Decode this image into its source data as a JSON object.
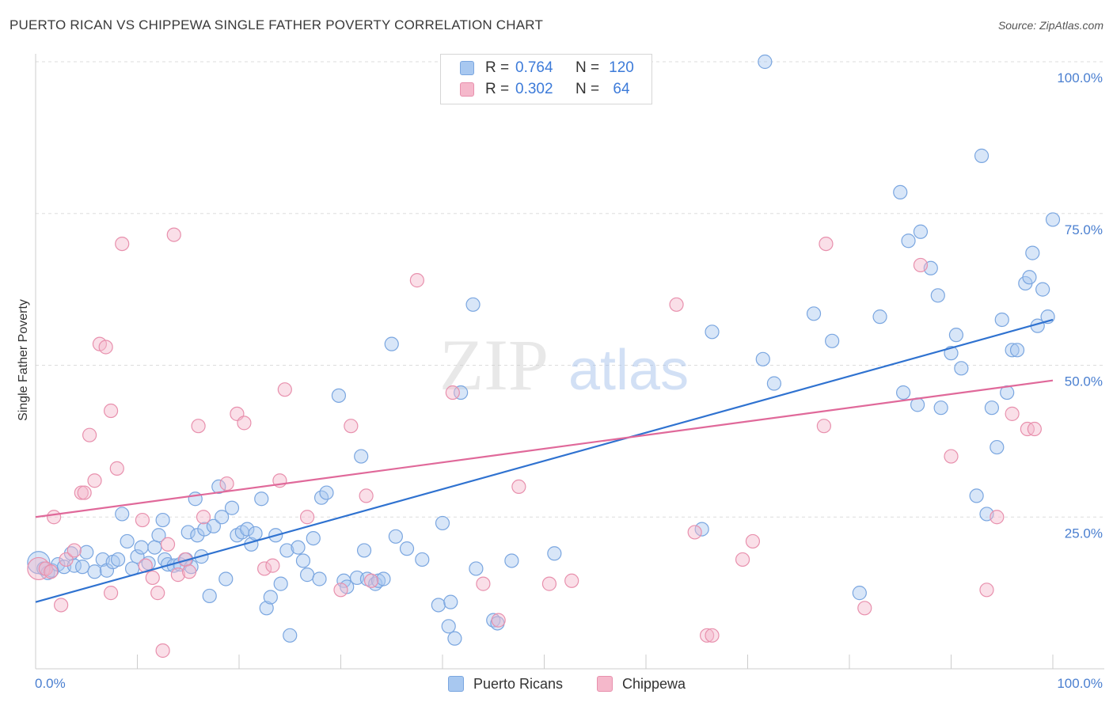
{
  "title": "PUERTO RICAN VS CHIPPEWA SINGLE FATHER POVERTY CORRELATION CHART",
  "source": "Source: ZipAtlas.com",
  "watermark": {
    "zip": "ZIP",
    "atlas": "atlas"
  },
  "legend": {
    "rows": [
      {
        "r_label": "R =",
        "r_value": "0.764",
        "n_label": "N =",
        "n_value": "120",
        "color": "#a8c8f0",
        "border": "#7aa6e0"
      },
      {
        "r_label": "R =",
        "r_value": "0.302",
        "n_label": "N =",
        "n_value": "64",
        "color": "#f5b8cb",
        "border": "#e890ad"
      }
    ]
  },
  "bottom_legend": [
    {
      "label": "Puerto Ricans",
      "color": "#a8c8f0",
      "border": "#7aa6e0"
    },
    {
      "label": "Chippewa",
      "color": "#f5b8cb",
      "border": "#e890ad"
    }
  ],
  "chart_data": {
    "type": "scatter",
    "title": "PUERTO RICAN VS CHIPPEWA SINGLE FATHER POVERTY CORRELATION CHART",
    "xlabel": "",
    "ylabel": "Single Father Poverty",
    "xlim": [
      0,
      100
    ],
    "ylim": [
      0,
      100
    ],
    "x_ticks": [
      "0.0%",
      "100.0%"
    ],
    "y_ticks": [
      {
        "value": 25,
        "label": "25.0%"
      },
      {
        "value": 50,
        "label": "50.0%"
      },
      {
        "value": 75,
        "label": "75.0%"
      },
      {
        "value": 100,
        "label": "100.0%"
      }
    ],
    "grid": "dashed horizontal",
    "series": [
      {
        "name": "Puerto Ricans",
        "color": "#7aa6e0",
        "fill": "#a8c8f0",
        "trend": {
          "x0": 0,
          "y0": 11,
          "x1": 100,
          "y1": 57.5,
          "color": "#2f72d0"
        },
        "points": [
          [
            0.3,
            17.5
          ],
          [
            0.8,
            16.5
          ],
          [
            1.2,
            15.8
          ],
          [
            1.6,
            16.2
          ],
          [
            2.2,
            17.2
          ],
          [
            2.8,
            16.8
          ],
          [
            3.5,
            19.0
          ],
          [
            3.8,
            17.0
          ],
          [
            4.6,
            16.8
          ],
          [
            5.0,
            19.2
          ],
          [
            5.8,
            16.0
          ],
          [
            6.6,
            18.0
          ],
          [
            7.0,
            16.2
          ],
          [
            7.6,
            17.6
          ],
          [
            8.1,
            18.0
          ],
          [
            8.5,
            25.5
          ],
          [
            9.0,
            21.0
          ],
          [
            9.5,
            16.5
          ],
          [
            10.0,
            18.5
          ],
          [
            10.4,
            20.0
          ],
          [
            11.1,
            17.4
          ],
          [
            11.7,
            20.0
          ],
          [
            12.1,
            22.0
          ],
          [
            12.5,
            24.5
          ],
          [
            12.7,
            18.0
          ],
          [
            13.0,
            17.2
          ],
          [
            13.6,
            17.0
          ],
          [
            14.2,
            17.2
          ],
          [
            14.8,
            18.0
          ],
          [
            15.0,
            22.5
          ],
          [
            15.3,
            16.8
          ],
          [
            15.7,
            28.0
          ],
          [
            15.9,
            22.0
          ],
          [
            16.3,
            18.5
          ],
          [
            16.6,
            23.0
          ],
          [
            17.1,
            12.0
          ],
          [
            17.5,
            23.5
          ],
          [
            18.0,
            30.0
          ],
          [
            18.3,
            25.0
          ],
          [
            18.7,
            14.8
          ],
          [
            19.3,
            26.5
          ],
          [
            19.8,
            22.0
          ],
          [
            20.3,
            22.5
          ],
          [
            20.8,
            23.0
          ],
          [
            21.2,
            20.5
          ],
          [
            21.6,
            22.3
          ],
          [
            22.2,
            28.0
          ],
          [
            22.7,
            10.0
          ],
          [
            23.1,
            11.8
          ],
          [
            23.6,
            22.0
          ],
          [
            24.1,
            14.0
          ],
          [
            24.7,
            19.5
          ],
          [
            25.0,
            5.5
          ],
          [
            25.8,
            20.0
          ],
          [
            26.3,
            17.8
          ],
          [
            26.7,
            15.5
          ],
          [
            27.3,
            21.5
          ],
          [
            27.9,
            14.8
          ],
          [
            28.1,
            28.2
          ],
          [
            28.6,
            29.0
          ],
          [
            29.8,
            45.0
          ],
          [
            30.3,
            14.5
          ],
          [
            30.6,
            13.5
          ],
          [
            31.6,
            15.0
          ],
          [
            32.0,
            35.0
          ],
          [
            32.3,
            19.5
          ],
          [
            32.6,
            14.8
          ],
          [
            33.4,
            14.0
          ],
          [
            33.7,
            14.5
          ],
          [
            34.2,
            14.8
          ],
          [
            35.0,
            53.5
          ],
          [
            35.4,
            21.8
          ],
          [
            36.5,
            19.8
          ],
          [
            38.0,
            18.0
          ],
          [
            39.6,
            10.5
          ],
          [
            40.0,
            24.0
          ],
          [
            40.6,
            7.0
          ],
          [
            40.8,
            11.0
          ],
          [
            41.2,
            5.0
          ],
          [
            41.8,
            45.5
          ],
          [
            43.0,
            60.0
          ],
          [
            43.3,
            16.5
          ],
          [
            45.0,
            8.0
          ],
          [
            45.4,
            7.5
          ],
          [
            46.8,
            17.8
          ],
          [
            51.0,
            19.0
          ],
          [
            65.5,
            23.0
          ],
          [
            66.5,
            55.5
          ],
          [
            71.5,
            51.0
          ],
          [
            72.6,
            47.0
          ],
          [
            76.5,
            58.5
          ],
          [
            78.3,
            54.0
          ],
          [
            81.0,
            12.5
          ],
          [
            83.0,
            58.0
          ],
          [
            85.0,
            78.5
          ],
          [
            85.3,
            45.5
          ],
          [
            85.8,
            70.5
          ],
          [
            86.7,
            43.5
          ],
          [
            87.0,
            72.0
          ],
          [
            88.0,
            66.0
          ],
          [
            88.7,
            61.5
          ],
          [
            89.0,
            43.0
          ],
          [
            90.0,
            52.0
          ],
          [
            90.5,
            55.0
          ],
          [
            91.0,
            49.5
          ],
          [
            92.5,
            28.5
          ],
          [
            93.0,
            84.5
          ],
          [
            93.5,
            25.5
          ],
          [
            94.0,
            43.0
          ],
          [
            94.5,
            36.5
          ],
          [
            95.0,
            57.5
          ],
          [
            95.5,
            45.5
          ],
          [
            96.0,
            52.5
          ],
          [
            96.5,
            52.5
          ],
          [
            97.3,
            63.5
          ],
          [
            97.7,
            64.5
          ],
          [
            98.0,
            68.5
          ],
          [
            98.5,
            56.5
          ],
          [
            99.0,
            62.5
          ],
          [
            99.5,
            58.0
          ],
          [
            100.0,
            74.0
          ],
          [
            71.7,
            100.0
          ]
        ]
      },
      {
        "name": "Chippewa",
        "color": "#e890ad",
        "fill": "#f5b8cb",
        "trend": {
          "x0": 0,
          "y0": 25,
          "x1": 100,
          "y1": 47.5,
          "color": "#e0699a"
        },
        "points": [
          [
            0.3,
            16.5
          ],
          [
            1.0,
            16.5
          ],
          [
            1.5,
            16.0
          ],
          [
            1.8,
            25.0
          ],
          [
            2.5,
            10.5
          ],
          [
            3.0,
            18.0
          ],
          [
            3.8,
            19.5
          ],
          [
            4.5,
            29.0
          ],
          [
            4.8,
            29.0
          ],
          [
            5.3,
            38.5
          ],
          [
            5.8,
            31.0
          ],
          [
            6.3,
            53.5
          ],
          [
            6.9,
            53.0
          ],
          [
            7.4,
            12.5
          ],
          [
            7.4,
            42.5
          ],
          [
            8.0,
            33.0
          ],
          [
            8.5,
            70.0
          ],
          [
            10.5,
            24.5
          ],
          [
            10.8,
            17.0
          ],
          [
            11.5,
            15.0
          ],
          [
            12.0,
            12.5
          ],
          [
            12.5,
            3.0
          ],
          [
            13.0,
            20.5
          ],
          [
            13.6,
            71.5
          ],
          [
            14.0,
            15.5
          ],
          [
            14.7,
            18.0
          ],
          [
            15.1,
            16.0
          ],
          [
            16.0,
            40.0
          ],
          [
            16.5,
            25.0
          ],
          [
            18.8,
            30.5
          ],
          [
            19.8,
            42.0
          ],
          [
            20.5,
            40.5
          ],
          [
            22.5,
            16.5
          ],
          [
            23.3,
            17.0
          ],
          [
            24.0,
            31.0
          ],
          [
            24.5,
            46.0
          ],
          [
            26.7,
            25.0
          ],
          [
            30.0,
            13.0
          ],
          [
            31.0,
            40.0
          ],
          [
            32.5,
            28.5
          ],
          [
            33.0,
            14.5
          ],
          [
            37.5,
            64.0
          ],
          [
            41.0,
            45.5
          ],
          [
            44.0,
            14.0
          ],
          [
            45.5,
            8.0
          ],
          [
            47.5,
            30.0
          ],
          [
            50.5,
            14.0
          ],
          [
            52.7,
            14.5
          ],
          [
            63.0,
            60.0
          ],
          [
            64.8,
            22.5
          ],
          [
            66.0,
            5.5
          ],
          [
            66.5,
            5.5
          ],
          [
            69.5,
            18.0
          ],
          [
            70.5,
            21.0
          ],
          [
            77.5,
            40.0
          ],
          [
            77.7,
            70.0
          ],
          [
            81.5,
            10.0
          ],
          [
            87.0,
            66.5
          ],
          [
            90.0,
            35.0
          ],
          [
            93.5,
            13.0
          ],
          [
            94.5,
            25.0
          ],
          [
            96.0,
            42.0
          ],
          [
            97.5,
            39.5
          ],
          [
            98.2,
            39.5
          ]
        ]
      }
    ]
  }
}
